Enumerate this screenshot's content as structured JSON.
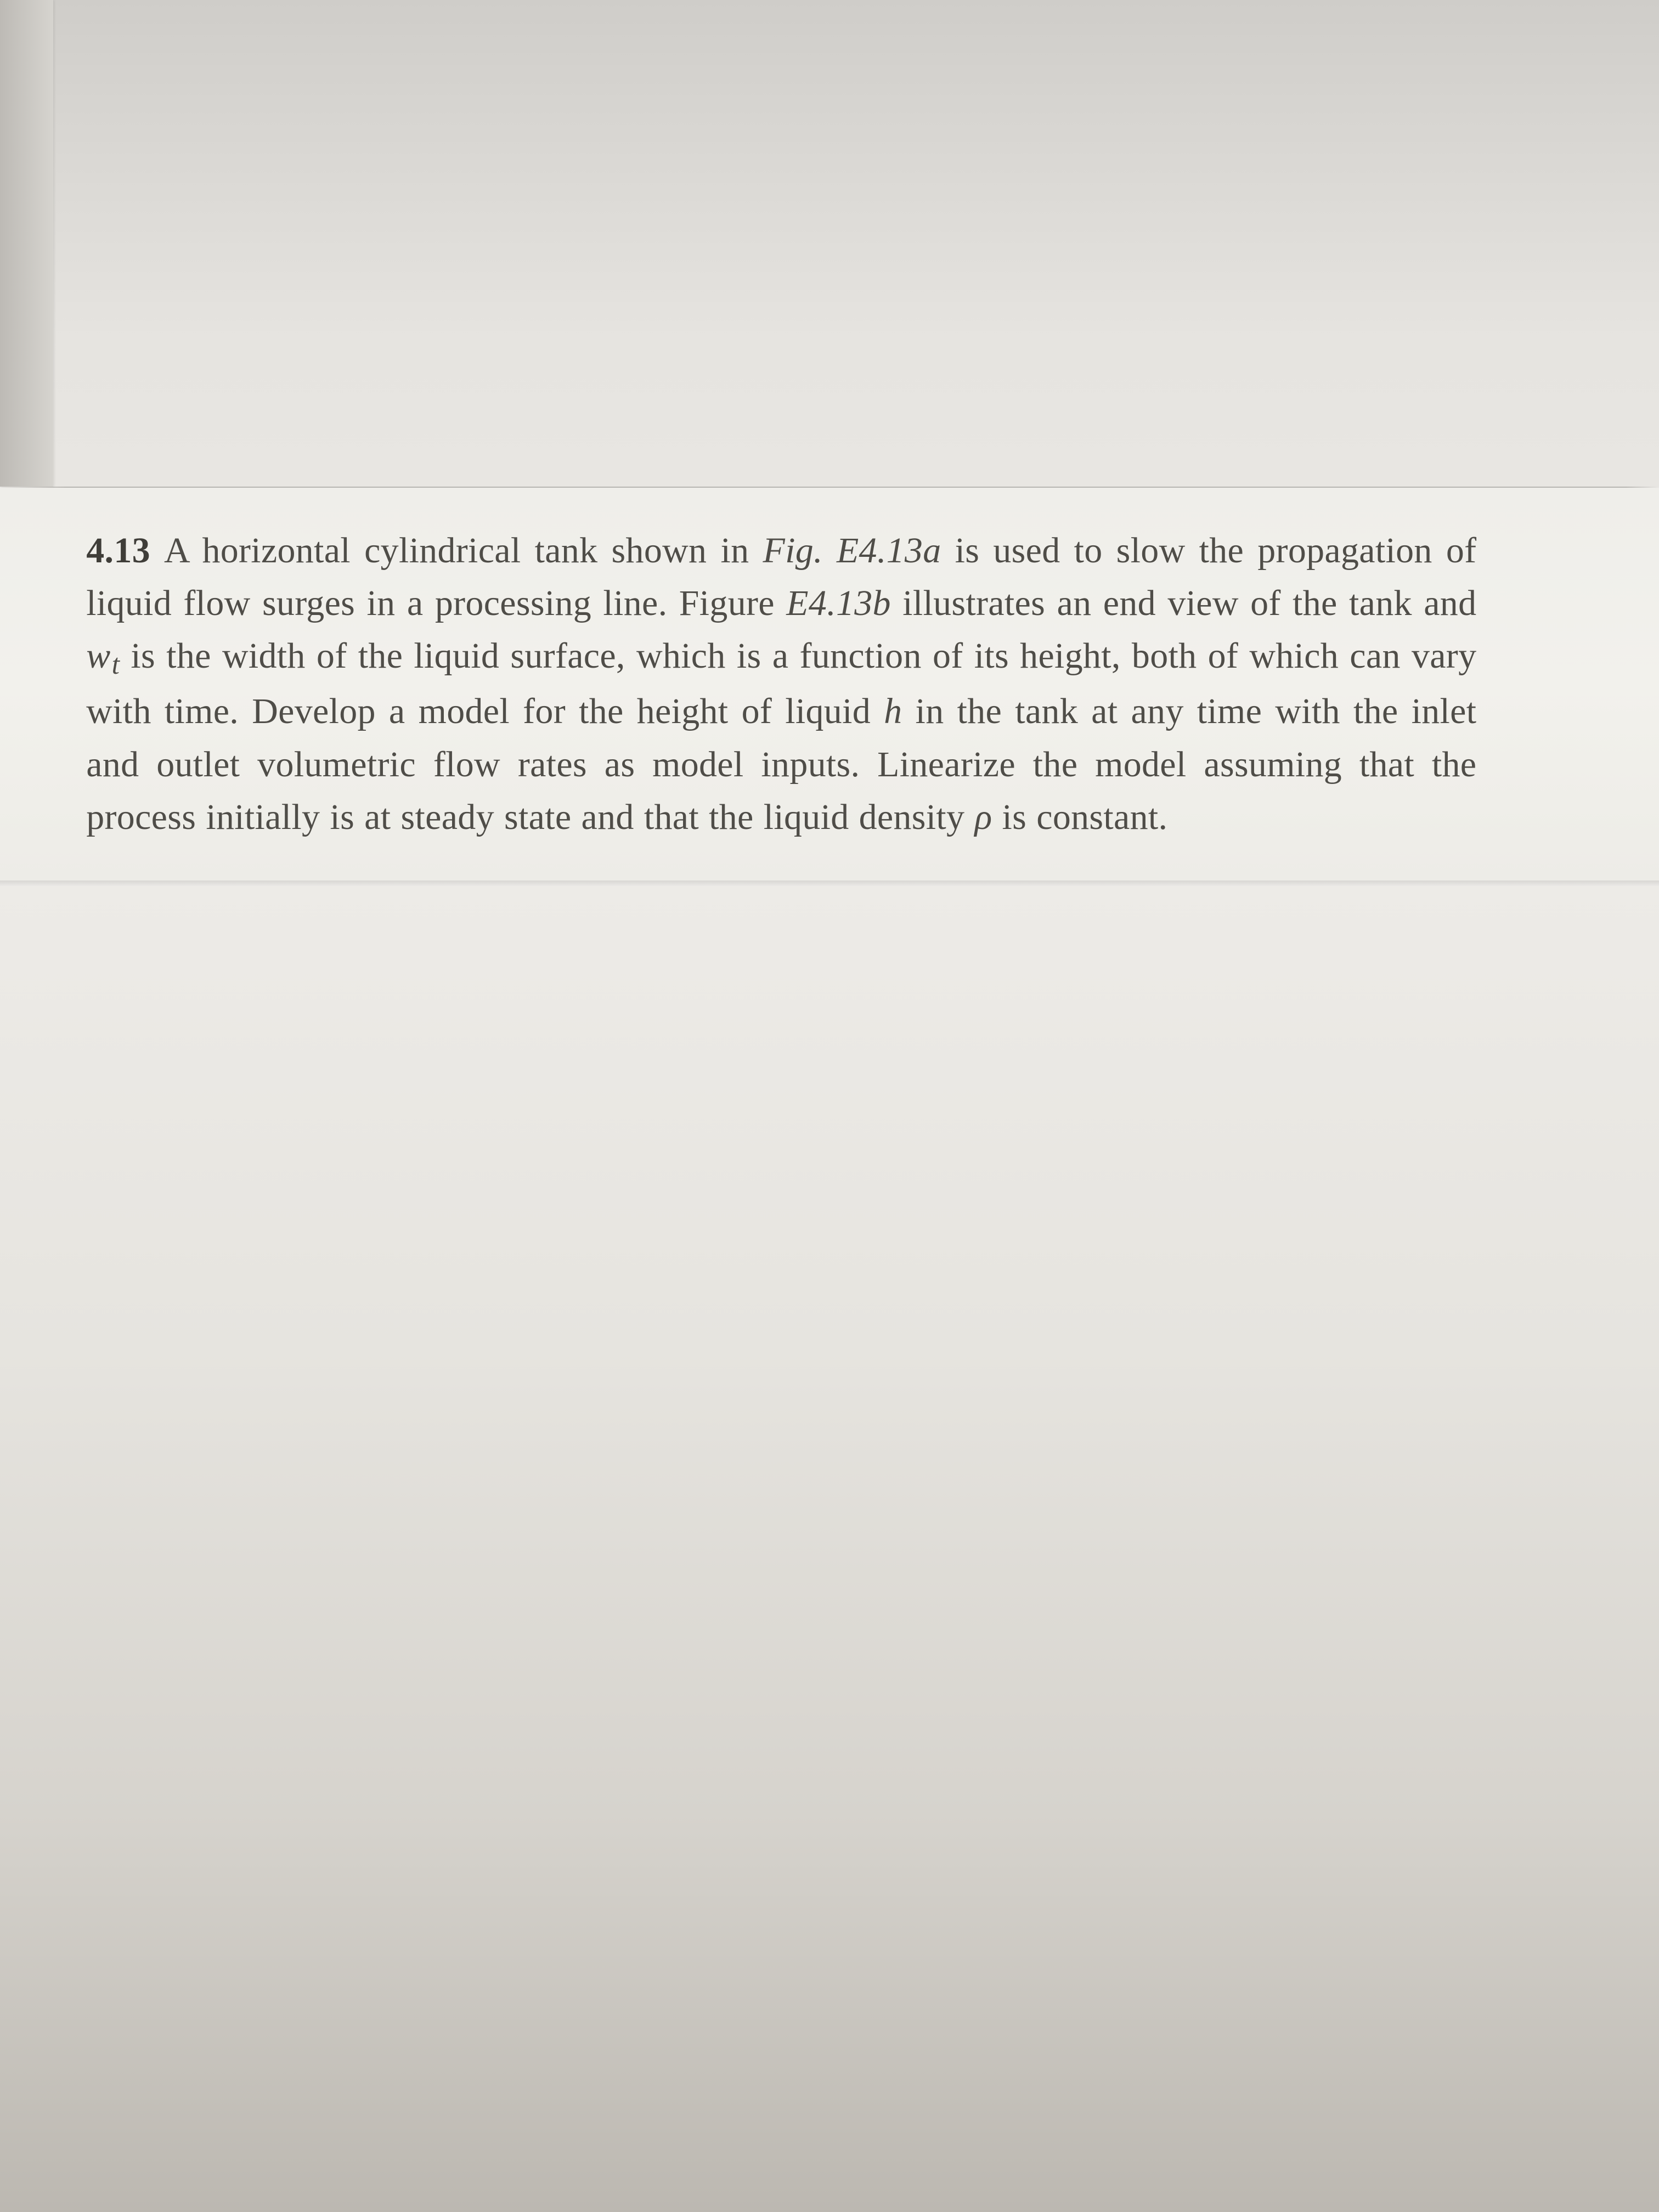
{
  "problem": {
    "number": "4.13",
    "text_before_fig1": "A horizontal cylindrical tank shown in ",
    "fig1": "Fig. E4.13a",
    "text_after_fig1": " is used to slow the propagation of liquid flow surges in a processing line. ",
    "fig2_prefix": "Figure ",
    "fig2": "E4.13b",
    "text_after_fig2_a": " illustrates an end view of the tank and ",
    "var_w": "w",
    "sub_t": "t",
    "text_after_wt": " is the width of the liquid surface, which is a function of its height, both of which can vary with time. Develop a model for the height of liquid ",
    "var_h": "h",
    "text_after_h": " in the tank at any time with the inlet and out­let volumetric flow rates as model inputs. Linearize the model assuming that the process initially is at steady state and that the liquid density ",
    "var_rho": "ρ",
    "text_after_rho": " is constant."
  },
  "style": {
    "text_color": "#4f4d48",
    "bold_color": "#3f3d38",
    "paper_bg_top": "#e6e4e0",
    "paper_bg_text": "#f2f1ec",
    "paper_bg_bottom": "#d6d3cd",
    "font_family": "Georgia, 'Times New Roman', Times, serif",
    "line_height": 1.46,
    "font_size_vw": 2.18
  }
}
